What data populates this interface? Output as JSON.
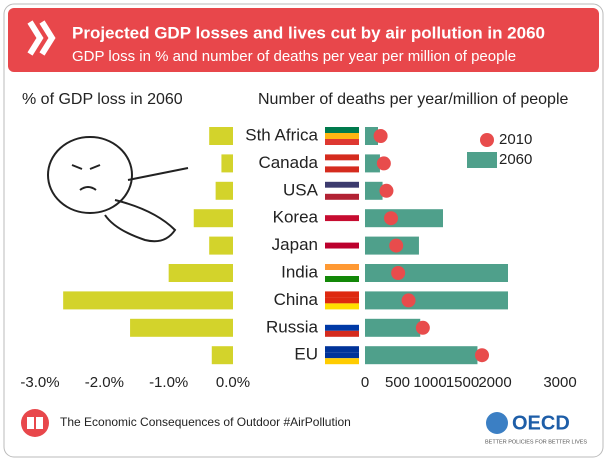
{
  "header": {
    "title": "Projected GDP losses and lives cut by air pollution in 2060",
    "subtitle": "GDP loss in % and number of deaths per year per million of people"
  },
  "chart_data": [
    {
      "type": "bar",
      "orientation": "horizontal",
      "title": "% of GDP loss in 2060",
      "categories": [
        "Sth Africa",
        "Canada",
        "USA",
        "Korea",
        "Japan",
        "India",
        "China",
        "Russia",
        "EU"
      ],
      "values": [
        -0.37,
        -0.18,
        -0.27,
        -0.61,
        -0.37,
        -1.0,
        -2.64,
        -1.6,
        -0.33
      ],
      "color": "#d3d32b",
      "xlim": [
        -3,
        0
      ],
      "xticks": [
        {
          "value": -3,
          "label": "-3.0%"
        },
        {
          "value": -2,
          "label": "-2.0%"
        },
        {
          "value": -1,
          "label": "-1.0%"
        },
        {
          "value": 0,
          "label": "0.0%"
        }
      ]
    },
    {
      "type": "bar",
      "orientation": "horizontal",
      "title": "Number of deaths per year/million of people",
      "series": [
        {
          "name": "2010",
          "color": "#e84c4c",
          "style": "dot",
          "values": [
            240,
            290,
            330,
            400,
            480,
            510,
            670,
            890,
            1800
          ]
        },
        {
          "name": "2060",
          "color": "#4fa08b",
          "style": "bar",
          "values": [
            200,
            230,
            270,
            1200,
            830,
            2200,
            2200,
            850,
            1730
          ]
        }
      ],
      "xlim": [
        0,
        3000
      ],
      "xticks": [
        0,
        500,
        1000,
        1500,
        2000,
        3000
      ]
    }
  ],
  "footer": {
    "text": "The Economic Consequences of Outdoor #AirPollution",
    "logo": "OECD",
    "tagline": "BETTER POLICIES FOR BETTER LIVES"
  }
}
